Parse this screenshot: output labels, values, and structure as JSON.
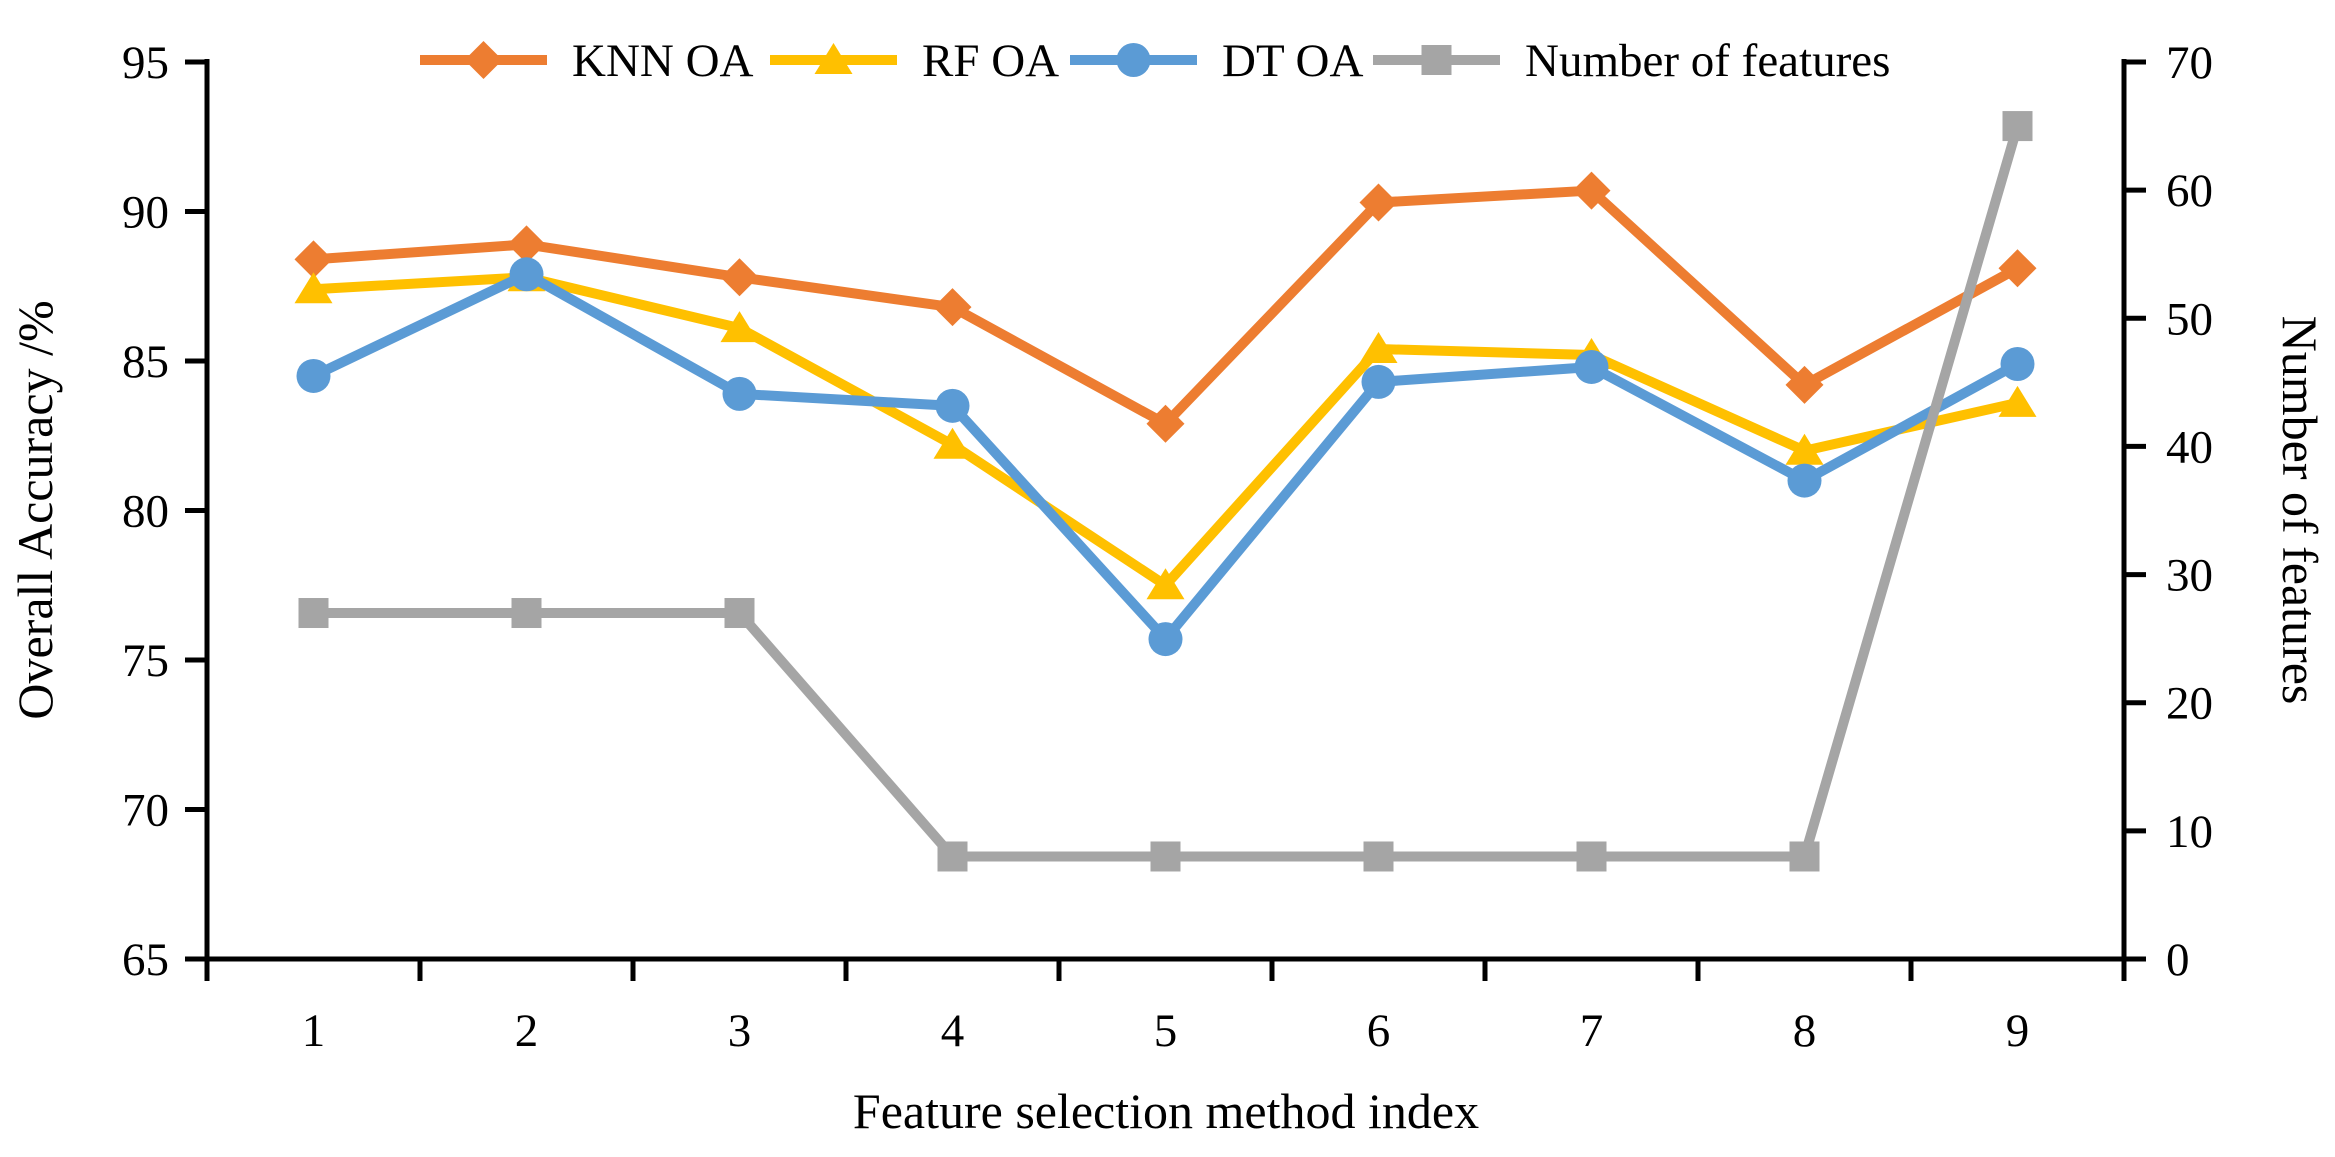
{
  "chart": {
    "background": "#ffffff",
    "axis_color": "#000000",
    "text_color": "#000000",
    "legend": {
      "position": "top-center",
      "items": [
        {
          "label": "KNN OA",
          "marker": "diamond",
          "color": "#ED7D31"
        },
        {
          "label": "RF OA",
          "marker": "triangle",
          "color": "#FFC000"
        },
        {
          "label": "DT OA",
          "marker": "circle",
          "color": "#5B9BD5"
        },
        {
          "label": "Number of features",
          "marker": "square",
          "color": "#A5A5A5"
        }
      ]
    }
  },
  "chart_data": {
    "type": "line",
    "title": "",
    "xlabel": "Feature selection method index",
    "ylabel_left": "Overall Accuracy /%",
    "ylabel_right": "Number of features",
    "categories": [
      1,
      2,
      3,
      4,
      5,
      6,
      7,
      8,
      9
    ],
    "y_left": {
      "min": 65,
      "max": 95,
      "ticks": [
        65,
        70,
        75,
        80,
        85,
        90,
        95
      ]
    },
    "y_right": {
      "min": 0,
      "max": 70,
      "ticks": [
        0,
        10,
        20,
        30,
        40,
        50,
        60,
        70
      ]
    },
    "grid": false,
    "series": [
      {
        "name": "KNN OA",
        "axis": "left",
        "marker": "diamond",
        "color": "#ED7D31",
        "values": [
          88.4,
          88.9,
          87.8,
          86.8,
          82.9,
          90.3,
          90.7,
          84.2,
          88.1
        ]
      },
      {
        "name": "RF OA",
        "axis": "left",
        "marker": "triangle",
        "color": "#FFC000",
        "values": [
          87.4,
          87.8,
          86.1,
          82.2,
          77.5,
          85.4,
          85.2,
          82.0,
          83.6
        ]
      },
      {
        "name": "DT OA",
        "axis": "left",
        "marker": "circle",
        "color": "#5B9BD5",
        "values": [
          84.5,
          87.9,
          83.9,
          83.5,
          75.7,
          84.3,
          84.8,
          81.0,
          84.9
        ]
      },
      {
        "name": "Number of features",
        "axis": "right",
        "marker": "square",
        "color": "#A5A5A5",
        "values": [
          27,
          27,
          27,
          8,
          8,
          8,
          8,
          8,
          65
        ]
      }
    ]
  }
}
